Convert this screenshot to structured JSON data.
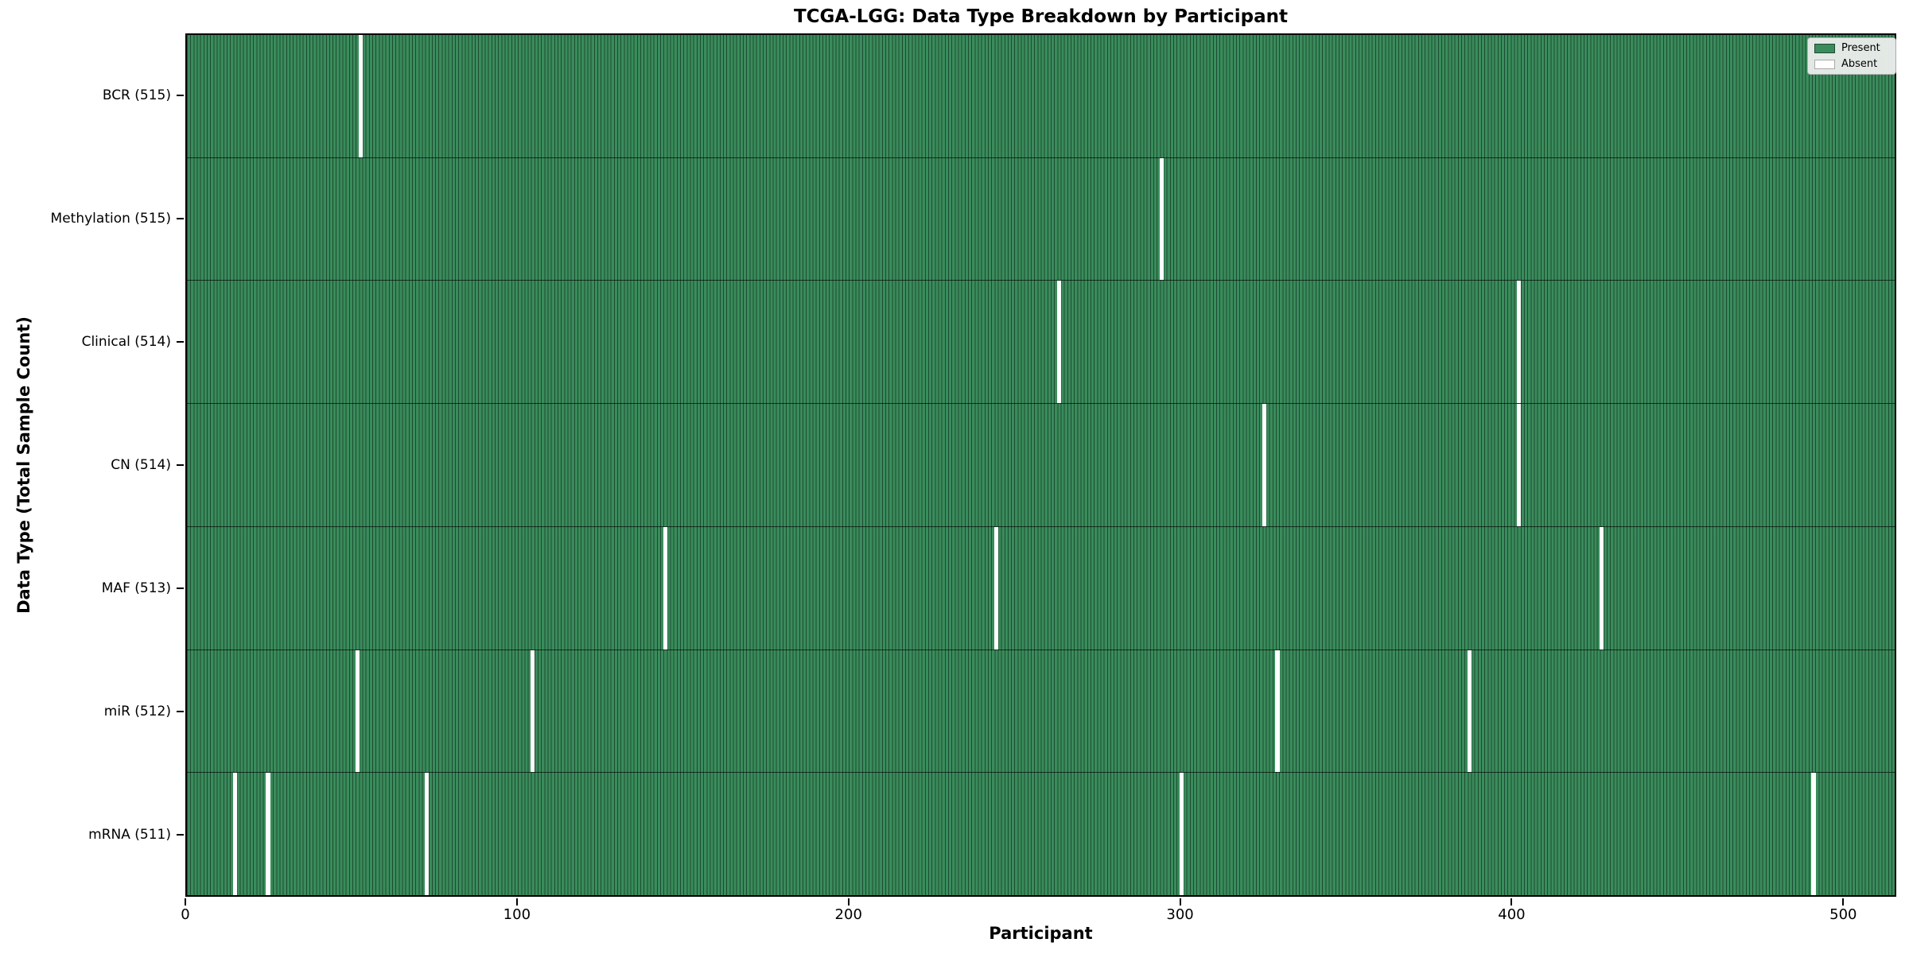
{
  "chart_data": {
    "type": "heatmap",
    "title": "TCGA-LGG: Data Type Breakdown by Participant",
    "xlabel": "Participant",
    "ylabel": "Data Type (Total Sample Count)",
    "x_range": [
      0,
      516
    ],
    "x_ticks": [
      0,
      100,
      200,
      300,
      400,
      500
    ],
    "total_participants": 516,
    "legend_position": "upper right",
    "grid": false,
    "legend": [
      {
        "label": "Present",
        "color": "#3a8c5c"
      },
      {
        "label": "Absent",
        "color": "#ffffff"
      }
    ],
    "rows": [
      {
        "label": "BCR (515)",
        "name": "BCR",
        "present_count": 515,
        "absent_participants": [
          52
        ]
      },
      {
        "label": "Methylation (515)",
        "name": "Methylation",
        "present_count": 515,
        "absent_participants": [
          294
        ]
      },
      {
        "label": "Clinical (514)",
        "name": "Clinical",
        "present_count": 514,
        "absent_participants": [
          263,
          402
        ]
      },
      {
        "label": "CN (514)",
        "name": "CN",
        "present_count": 514,
        "absent_participants": [
          325,
          402
        ]
      },
      {
        "label": "MAF (513)",
        "name": "MAF",
        "present_count": 513,
        "absent_participants": [
          144,
          244,
          427
        ]
      },
      {
        "label": "miR (512)",
        "name": "miR",
        "present_count": 512,
        "absent_participants": [
          51,
          104,
          329,
          387
        ]
      },
      {
        "label": "mRNA (511)",
        "name": "mRNA",
        "present_count": 511,
        "absent_participants": [
          14,
          24,
          72,
          300,
          491
        ]
      }
    ],
    "colors": {
      "present_fill": "#3a8c5c",
      "bar_edge": "#1d4b31",
      "absent": "#ffffff",
      "row_divider": "#000000",
      "spine": "#000000",
      "legend_background": "#f2f2f2",
      "legend_border": "#b0b0b0",
      "text": "#000000",
      "figure_background": "#ffffff"
    }
  }
}
